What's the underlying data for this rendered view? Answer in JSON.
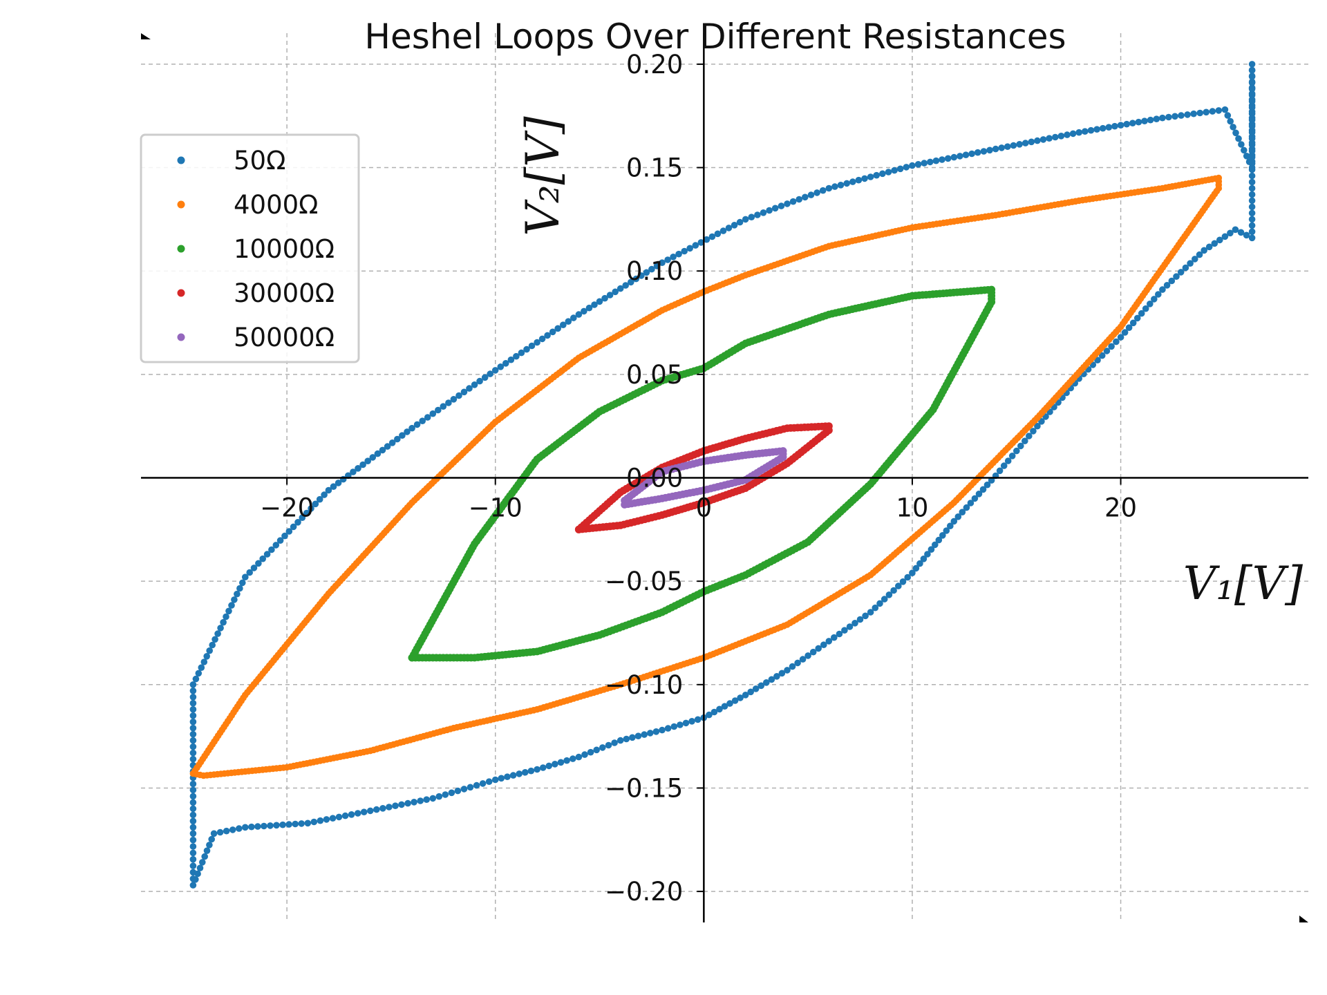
{
  "chart_data": {
    "type": "scatter",
    "title": "Heshel Loops Over Different Resistances",
    "xlabel": "V₁[V]",
    "ylabel": "V₂[V]",
    "xlim": [
      -27,
      29
    ],
    "ylim": [
      -0.215,
      0.215
    ],
    "xticks": [
      -20,
      -10,
      0,
      10,
      20
    ],
    "yticks": [
      -0.2,
      -0.15,
      -0.1,
      -0.05,
      0.0,
      0.05,
      0.1,
      0.15,
      0.2
    ],
    "xtick_labels": [
      "−20",
      "−10",
      "0",
      "10",
      "20"
    ],
    "ytick_labels": [
      "−0.20",
      "−0.15",
      "−0.10",
      "−0.05",
      "0.00",
      "0.05",
      "0.10",
      "0.15",
      "0.20"
    ],
    "grid": true,
    "spines": "centered at origin",
    "legend_position": "upper-left",
    "series": [
      {
        "name": "50Ω",
        "color": "#1f77b4",
        "x": [
          26.3,
          26.3,
          26.3,
          25.0,
          22.0,
          18.0,
          14.0,
          10.0,
          6.0,
          2.0,
          -2.0,
          -6.0,
          -10.0,
          -14.0,
          -18.0,
          -22.0,
          -24.5,
          -24.5,
          -24.5,
          -23.5,
          -22.0,
          -19.0,
          -16.0,
          -13.0,
          -10.0,
          -8.0,
          -6.0,
          -4.0,
          -2.0,
          0.0,
          2.0,
          4.0,
          6.0,
          8.0,
          10.0,
          12.0,
          14.0,
          16.0,
          18.0,
          20.0,
          22.0,
          24.0,
          25.5,
          26.3
        ],
        "y": [
          0.2,
          0.18,
          0.15,
          0.178,
          0.174,
          0.167,
          0.159,
          0.151,
          0.14,
          0.125,
          0.104,
          0.079,
          0.052,
          0.024,
          -0.006,
          -0.048,
          -0.1,
          -0.172,
          -0.197,
          -0.172,
          -0.169,
          -0.167,
          -0.161,
          -0.155,
          -0.146,
          -0.141,
          -0.135,
          -0.127,
          -0.122,
          -0.116,
          -0.105,
          -0.093,
          -0.079,
          -0.065,
          -0.046,
          -0.021,
          0.001,
          0.025,
          0.048,
          0.068,
          0.091,
          0.11,
          0.12,
          0.116
        ]
      },
      {
        "name": "4000Ω",
        "color": "#ff7f0e",
        "x": [
          24.7,
          22.0,
          18.0,
          14.0,
          10.0,
          6.0,
          2.0,
          0.0,
          -2.0,
          -6.0,
          -10.0,
          -14.0,
          -18.0,
          -22.0,
          -24.5,
          -24.0,
          -20.0,
          -16.0,
          -12.0,
          -8.0,
          -4.0,
          0.0,
          4.0,
          8.0,
          12.0,
          16.0,
          20.0,
          24.7
        ],
        "y": [
          0.145,
          0.14,
          0.134,
          0.127,
          0.121,
          0.112,
          0.098,
          0.09,
          0.081,
          0.058,
          0.027,
          -0.012,
          -0.056,
          -0.105,
          -0.143,
          -0.144,
          -0.14,
          -0.132,
          -0.121,
          -0.112,
          -0.1,
          -0.087,
          -0.071,
          -0.047,
          -0.012,
          0.029,
          0.073,
          0.14
        ]
      },
      {
        "name": "10000Ω",
        "color": "#2ca02c",
        "x": [
          13.8,
          10.0,
          6.0,
          2.0,
          0.0,
          -2.0,
          -5.0,
          -8.0,
          -11.0,
          -14.0,
          -14.0,
          -11.0,
          -8.0,
          -5.0,
          -2.0,
          0.0,
          2.0,
          5.0,
          8.0,
          11.0,
          13.8
        ],
        "y": [
          0.091,
          0.088,
          0.079,
          0.065,
          0.053,
          0.047,
          0.032,
          0.009,
          -0.032,
          -0.087,
          -0.087,
          -0.087,
          -0.084,
          -0.076,
          -0.065,
          -0.055,
          -0.047,
          -0.031,
          -0.003,
          0.033,
          0.085
        ]
      },
      {
        "name": "30000Ω",
        "color": "#d62728",
        "x": [
          6.0,
          4.0,
          2.0,
          0.0,
          -2.0,
          -4.0,
          -6.0,
          -6.0,
          -4.0,
          -2.0,
          0.0,
          2.0,
          4.0,
          6.0
        ],
        "y": [
          0.025,
          0.024,
          0.019,
          0.013,
          0.005,
          -0.007,
          -0.025,
          -0.025,
          -0.023,
          -0.018,
          -0.012,
          -0.005,
          0.007,
          0.023
        ]
      },
      {
        "name": "50000Ω",
        "color": "#9467bd",
        "x": [
          3.8,
          2.0,
          0.0,
          -2.0,
          -3.8,
          -3.8,
          -2.0,
          0.0,
          2.0,
          3.8
        ],
        "y": [
          0.013,
          0.011,
          0.008,
          0.003,
          -0.011,
          -0.013,
          -0.01,
          -0.006,
          -0.001,
          0.01
        ]
      }
    ]
  }
}
